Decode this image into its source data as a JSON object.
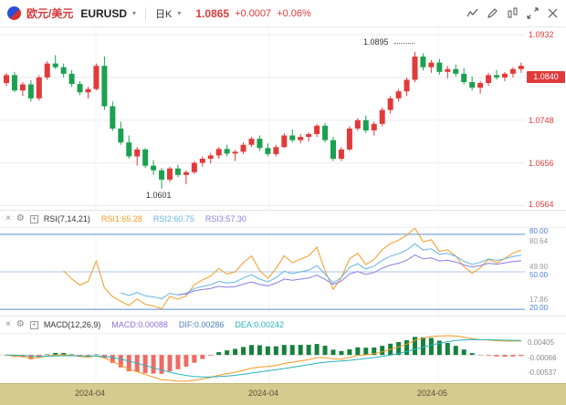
{
  "header": {
    "pair_cn": "欧元/美元",
    "symbol": "EURUSD",
    "caret": "▾",
    "timeframe": "日K",
    "price": "1.0865",
    "change": "+0.0007",
    "change_pct": "+0.06%"
  },
  "icons": {
    "close": "×",
    "settings": "⚙",
    "add": "+"
  },
  "price_axis": {
    "labels": [
      "1.0932",
      "1.0748",
      "1.0656",
      "1.0564"
    ],
    "current": "1.0840"
  },
  "annotations": {
    "high": "1.0895",
    "low": "1.0601"
  },
  "rsi": {
    "title": "RSI(7,14,21)",
    "values": [
      {
        "text": "RSI1:65.28"
      },
      {
        "text": "RSI2:60.75"
      },
      {
        "text": "RSI3:57.30"
      }
    ],
    "axis": {
      "l80": "80.00",
      "max": "80.64",
      "mid_gray": "49.90",
      "l50": "50.00",
      "min": "17.86",
      "l20": "20.00"
    }
  },
  "macd": {
    "title": "MACD(12,26,9)",
    "values": [
      {
        "text": "MACD:0.00088"
      },
      {
        "text": "DIF:0.00286"
      },
      {
        "text": "DEA:0.00242"
      }
    ],
    "axis": [
      "0.00405",
      "-0.00066",
      "-0.00537"
    ]
  },
  "dates": [
    "2024-04",
    "2024-04",
    "2024-05"
  ],
  "colors": {
    "up": "#e23a3a",
    "down": "#1ba14f",
    "grid": "#ebebeb",
    "axis_text": "#e03a3a",
    "badge_bg": "#e03a3a",
    "level_blue": "#5b8fd4",
    "rsi1": "#f59a23",
    "rsi2": "#63b5e5",
    "rsi3": "#8a7ee0",
    "dif": "#f59a23",
    "dea": "#27b3bd",
    "hist_pos": "#17813c",
    "hist_neg": "#ee6b63",
    "date_bar": "#d5cb8f"
  },
  "chart_data": [
    {
      "type": "candlestick",
      "title": "EURUSD 日K",
      "x_labels": [
        "2024-04",
        "2024-04",
        "2024-05"
      ],
      "y_ticks": [
        1.0932,
        1.084,
        1.0748,
        1.0656,
        1.0564
      ],
      "render_range": [
        1.0555,
        1.094
      ],
      "high_label": 1.0895,
      "low_label": 1.0601,
      "last_close": 1.0865,
      "last_change": 0.0007,
      "last_change_pct": 0.06,
      "ohlc": [
        [
          1.0828,
          1.085,
          1.0822,
          1.0845
        ],
        [
          1.0845,
          1.0852,
          1.0808,
          1.0812
        ],
        [
          1.0812,
          1.083,
          1.08,
          1.0825
        ],
        [
          1.0825,
          1.0834,
          1.0788,
          1.0795
        ],
        [
          1.0795,
          1.0845,
          1.079,
          1.084
        ],
        [
          1.084,
          1.0875,
          1.0835,
          1.087
        ],
        [
          1.087,
          1.0888,
          1.0858,
          1.0862
        ],
        [
          1.0862,
          1.087,
          1.084,
          1.0848
        ],
        [
          1.0848,
          1.0856,
          1.082,
          1.0826
        ],
        [
          1.0826,
          1.0832,
          1.0802,
          1.0808
        ],
        [
          1.0808,
          1.082,
          1.0795,
          1.0815
        ],
        [
          1.0815,
          1.087,
          1.0812,
          1.0865
        ],
        [
          1.0865,
          1.0885,
          1.077,
          1.0778
        ],
        [
          1.0778,
          1.0788,
          1.0725,
          1.073
        ],
        [
          1.073,
          1.0745,
          1.0695,
          1.07
        ],
        [
          1.07,
          1.0715,
          1.0665,
          1.067
        ],
        [
          1.067,
          1.069,
          1.065,
          1.0685
        ],
        [
          1.0685,
          1.0688,
          1.0645,
          1.065
        ],
        [
          1.065,
          1.0662,
          1.063,
          1.064
        ],
        [
          1.064,
          1.0645,
          1.0601,
          1.062
        ],
        [
          1.062,
          1.0648,
          1.0615,
          1.0644
        ],
        [
          1.0644,
          1.0652,
          1.0625,
          1.063
        ],
        [
          1.063,
          1.064,
          1.061,
          1.0636
        ],
        [
          1.0636,
          1.066,
          1.0632,
          1.0656
        ],
        [
          1.0656,
          1.067,
          1.0648,
          1.0665
        ],
        [
          1.0665,
          1.0678,
          1.0655,
          1.0672
        ],
        [
          1.0672,
          1.069,
          1.0665,
          1.0686
        ],
        [
          1.0686,
          1.0695,
          1.067,
          1.0676
        ],
        [
          1.0676,
          1.0684,
          1.066,
          1.068
        ],
        [
          1.068,
          1.07,
          1.0675,
          1.0695
        ],
        [
          1.0695,
          1.0712,
          1.069,
          1.0708
        ],
        [
          1.0708,
          1.0715,
          1.0682,
          1.0688
        ],
        [
          1.0688,
          1.0698,
          1.067,
          1.0675
        ],
        [
          1.0675,
          1.0695,
          1.067,
          1.069
        ],
        [
          1.069,
          1.072,
          1.0688,
          1.0715
        ],
        [
          1.0715,
          1.0728,
          1.07,
          1.0705
        ],
        [
          1.0705,
          1.0718,
          1.0698,
          1.0712
        ],
        [
          1.0712,
          1.0722,
          1.0702,
          1.0718
        ],
        [
          1.0718,
          1.074,
          1.0712,
          1.0736
        ],
        [
          1.0736,
          1.0742,
          1.07,
          1.0705
        ],
        [
          1.0705,
          1.0712,
          1.066,
          1.0665
        ],
        [
          1.0665,
          1.069,
          1.066,
          1.0685
        ],
        [
          1.0685,
          1.0735,
          1.0682,
          1.073
        ],
        [
          1.073,
          1.0752,
          1.0725,
          1.0748
        ],
        [
          1.0748,
          1.0758,
          1.072,
          1.0726
        ],
        [
          1.0726,
          1.0745,
          1.0715,
          1.074
        ],
        [
          1.074,
          1.0775,
          1.0735,
          1.077
        ],
        [
          1.077,
          1.08,
          1.0762,
          1.0795
        ],
        [
          1.0795,
          1.0815,
          1.0788,
          1.081
        ],
        [
          1.081,
          1.084,
          1.08,
          1.0835
        ],
        [
          1.0835,
          1.0895,
          1.083,
          1.0885
        ],
        [
          1.0885,
          1.0892,
          1.0855,
          1.0862
        ],
        [
          1.0862,
          1.0878,
          1.085,
          1.0872
        ],
        [
          1.0872,
          1.088,
          1.0846,
          1.0852
        ],
        [
          1.0852,
          1.0865,
          1.0838,
          1.0858
        ],
        [
          1.0858,
          1.0868,
          1.0842,
          1.0848
        ],
        [
          1.0848,
          1.086,
          1.0825,
          1.083
        ],
        [
          1.083,
          1.0842,
          1.0812,
          1.0818
        ],
        [
          1.0818,
          1.0832,
          1.0805,
          1.0828
        ],
        [
          1.0828,
          1.085,
          1.0822,
          1.0845
        ],
        [
          1.0845,
          1.0856,
          1.0835,
          1.084
        ],
        [
          1.084,
          1.0852,
          1.0832,
          1.0848
        ],
        [
          1.0848,
          1.0862,
          1.084,
          1.0858
        ],
        [
          1.0858,
          1.0872,
          1.085,
          1.0865
        ]
      ]
    },
    {
      "type": "line",
      "name": "RSI",
      "params": [
        7,
        14,
        21
      ],
      "latest": [
        65.28,
        60.75,
        57.3
      ],
      "levels": [
        80,
        50,
        20
      ],
      "range": [
        17.86,
        80.64
      ]
    },
    {
      "type": "bar",
      "name": "MACD",
      "params": [
        12,
        26,
        9
      ],
      "latest": {
        "macd": 0.00088,
        "dif": 0.00286,
        "dea": 0.00242
      },
      "y_ticks": [
        0.00405,
        -0.00066,
        -0.00537
      ]
    }
  ]
}
